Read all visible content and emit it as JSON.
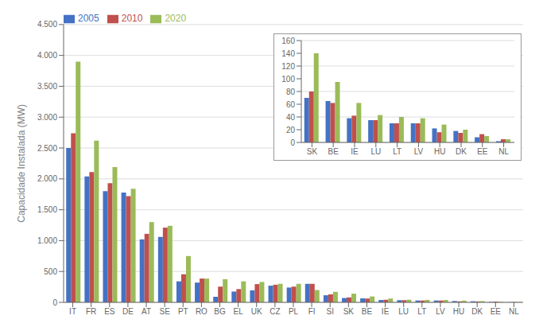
{
  "chart_data": [
    {
      "type": "bar",
      "categories": [
        "IT",
        "FR",
        "ES",
        "DE",
        "AT",
        "SE",
        "PT",
        "RO",
        "BG",
        "EL",
        "UK",
        "CZ",
        "PL",
        "FI",
        "SI",
        "SK",
        "BE",
        "IE",
        "LU",
        "LT",
        "LV",
        "HU",
        "DK",
        "EE",
        "NL"
      ],
      "series": [
        {
          "name": "2005",
          "color": "#4472C4",
          "values": [
            2500,
            2040,
            1800,
            1780,
            1020,
            1060,
            340,
            320,
            90,
            175,
            195,
            270,
            240,
            300,
            115,
            70,
            65,
            38,
            35,
            30,
            30,
            22,
            18,
            8,
            2
          ]
        },
        {
          "name": "2010",
          "color": "#C0504D",
          "values": [
            2740,
            2110,
            1930,
            1720,
            1110,
            1210,
            455,
            385,
            255,
            215,
            295,
            285,
            255,
            300,
            130,
            80,
            62,
            42,
            35,
            30,
            30,
            16,
            15,
            13,
            5
          ]
        },
        {
          "name": "2020",
          "color": "#9BBB59",
          "values": [
            3900,
            2620,
            2190,
            1840,
            1300,
            1240,
            750,
            385,
            375,
            340,
            330,
            300,
            300,
            200,
            170,
            140,
            95,
            62,
            43,
            40,
            38,
            28,
            20,
            10,
            5
          ]
        }
      ],
      "y_label": "Capacidade Instalada (MW)",
      "ylim": [
        0,
        4500
      ],
      "yticks": [
        0,
        500,
        {
          "value": 1000,
          "label": "1.000"
        },
        {
          "value": 1500,
          "label": "1.500"
        },
        {
          "value": 2000,
          "label": "2.000"
        },
        {
          "value": 2500,
          "label": "2.500"
        },
        {
          "value": 3000,
          "label": "3.000"
        },
        {
          "value": 3500,
          "label": "3.500"
        },
        {
          "value": 4000,
          "label": "4.000"
        },
        {
          "value": 4500,
          "label": "4.500"
        }
      ],
      "grid": true,
      "legend": "upper left"
    },
    {
      "type": "bar",
      "categories": [
        "SK",
        "BE",
        "IE",
        "LU",
        "LT",
        "LV",
        "HU",
        "DK",
        "EE",
        "NL"
      ],
      "series": [
        {
          "color": "#4472C4",
          "values": [
            70,
            65,
            38,
            35,
            30,
            30,
            22,
            18,
            8,
            2
          ]
        },
        {
          "color": "#C0504D",
          "values": [
            80,
            62,
            42,
            35,
            30,
            30,
            16,
            15,
            13,
            5
          ]
        },
        {
          "color": "#9BBB59",
          "values": [
            140,
            95,
            62,
            43,
            40,
            38,
            28,
            20,
            10,
            5
          ]
        }
      ],
      "ylim": [
        0,
        160
      ],
      "yticks": [
        0,
        20,
        40,
        60,
        80,
        100,
        120,
        140,
        160
      ],
      "grid": true
    }
  ]
}
